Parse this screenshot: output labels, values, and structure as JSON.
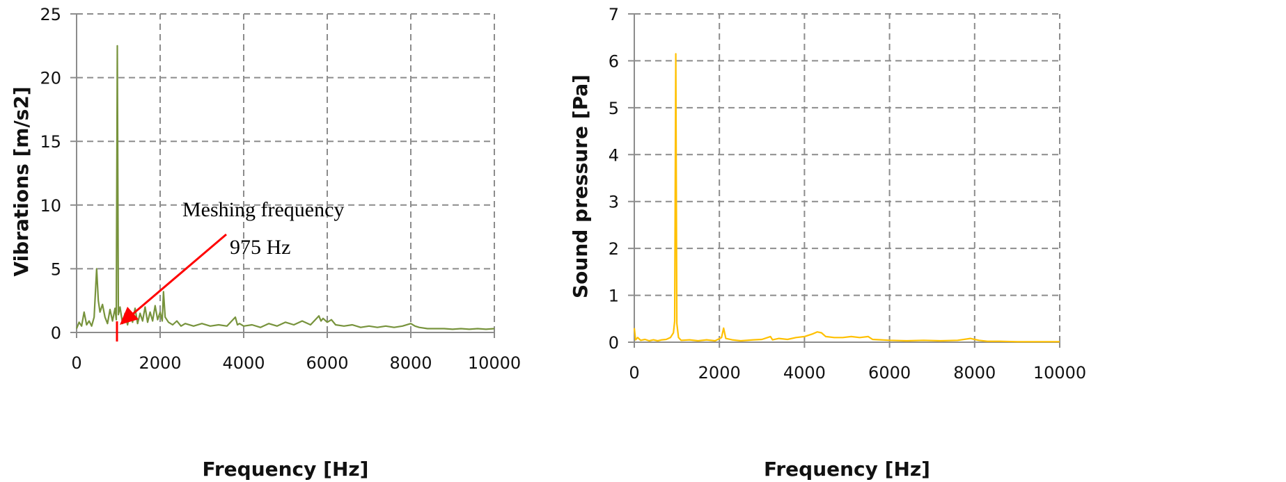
{
  "chart_data": [
    {
      "type": "line",
      "xlabel": "Frequency [Hz]",
      "ylabel": "Vibrations [m/s2]",
      "xlim": [
        0,
        10000
      ],
      "ylim": [
        0,
        25
      ],
      "xticks": [
        0,
        2000,
        4000,
        6000,
        8000,
        10000
      ],
      "yticks": [
        0,
        5,
        10,
        15,
        20,
        25
      ],
      "grid": true,
      "color": "#77933c",
      "annotation": {
        "line1": "Meshing frequency",
        "line2": "975 Hz",
        "x": 975,
        "color": "#ff0000"
      },
      "x": [
        0,
        60,
        120,
        180,
        240,
        300,
        360,
        420,
        480,
        520,
        560,
        620,
        680,
        740,
        800,
        860,
        920,
        950,
        975,
        1000,
        1040,
        1100,
        1160,
        1220,
        1280,
        1340,
        1400,
        1460,
        1520,
        1580,
        1640,
        1700,
        1760,
        1820,
        1880,
        1940,
        2000,
        2050,
        2080,
        2120,
        2200,
        2300,
        2400,
        2500,
        2600,
        2800,
        3000,
        3200,
        3400,
        3600,
        3800,
        3850,
        3900,
        4000,
        4200,
        4400,
        4600,
        4800,
        5000,
        5200,
        5400,
        5600,
        5800,
        5850,
        5900,
        6000,
        6100,
        6200,
        6400,
        6600,
        6800,
        7000,
        7200,
        7400,
        7600,
        7800,
        8000,
        8100,
        8200,
        8400,
        8600,
        8800,
        9000,
        9200,
        9400,
        9600,
        9800,
        10000
      ],
      "y": [
        0.3,
        0.8,
        0.5,
        1.6,
        0.6,
        0.9,
        0.5,
        1.2,
        5.0,
        2.5,
        1.6,
        2.2,
        1.2,
        0.7,
        1.8,
        0.9,
        1.9,
        1.0,
        22.5,
        1.4,
        2.0,
        0.7,
        1.5,
        0.6,
        1.6,
        0.8,
        1.9,
        0.7,
        1.5,
        0.9,
        2.0,
        0.8,
        1.6,
        0.9,
        2.1,
        1.0,
        1.6,
        0.9,
        3.2,
        1.2,
        0.8,
        0.6,
        0.9,
        0.5,
        0.7,
        0.5,
        0.7,
        0.5,
        0.6,
        0.5,
        1.2,
        0.6,
        0.7,
        0.5,
        0.6,
        0.4,
        0.7,
        0.5,
        0.8,
        0.6,
        0.9,
        0.6,
        1.3,
        0.9,
        1.1,
        0.8,
        1.0,
        0.6,
        0.5,
        0.6,
        0.4,
        0.5,
        0.4,
        0.5,
        0.4,
        0.5,
        0.7,
        0.5,
        0.4,
        0.3,
        0.3,
        0.3,
        0.25,
        0.3,
        0.25,
        0.3,
        0.25,
        0.3
      ]
    },
    {
      "type": "line",
      "xlabel": "Frequency [Hz]",
      "ylabel": "Sound pressure [Pa]",
      "xlim": [
        0,
        10000
      ],
      "ylim": [
        0,
        7
      ],
      "xticks": [
        0,
        2000,
        4000,
        6000,
        8000,
        10000
      ],
      "yticks": [
        0,
        1,
        2,
        3,
        4,
        5,
        6,
        7
      ],
      "grid": true,
      "color": "#ffc000",
      "x": [
        0,
        30,
        80,
        150,
        250,
        350,
        450,
        550,
        650,
        750,
        850,
        920,
        950,
        975,
        1000,
        1040,
        1100,
        1300,
        1500,
        1700,
        1900,
        2050,
        2100,
        2150,
        2300,
        2500,
        2800,
        3000,
        3200,
        3250,
        3400,
        3600,
        3800,
        4000,
        4100,
        4200,
        4300,
        4400,
        4500,
        4700,
        4900,
        5100,
        5300,
        5500,
        5600,
        5800,
        6000,
        6400,
        6800,
        7200,
        7600,
        7900,
        8000,
        8100,
        8300,
        8600,
        9000,
        9400,
        9800,
        10000
      ],
      "y": [
        0.3,
        0.05,
        0.1,
        0.04,
        0.06,
        0.03,
        0.05,
        0.03,
        0.05,
        0.06,
        0.1,
        0.2,
        0.45,
        6.15,
        0.4,
        0.1,
        0.04,
        0.05,
        0.03,
        0.05,
        0.03,
        0.1,
        0.3,
        0.08,
        0.05,
        0.03,
        0.05,
        0.06,
        0.12,
        0.05,
        0.08,
        0.06,
        0.1,
        0.12,
        0.15,
        0.18,
        0.22,
        0.2,
        0.12,
        0.1,
        0.1,
        0.12,
        0.1,
        0.12,
        0.06,
        0.05,
        0.04,
        0.03,
        0.04,
        0.03,
        0.04,
        0.08,
        0.06,
        0.04,
        0.02,
        0.02,
        0.01,
        0.01,
        0.01,
        0.01
      ]
    }
  ]
}
